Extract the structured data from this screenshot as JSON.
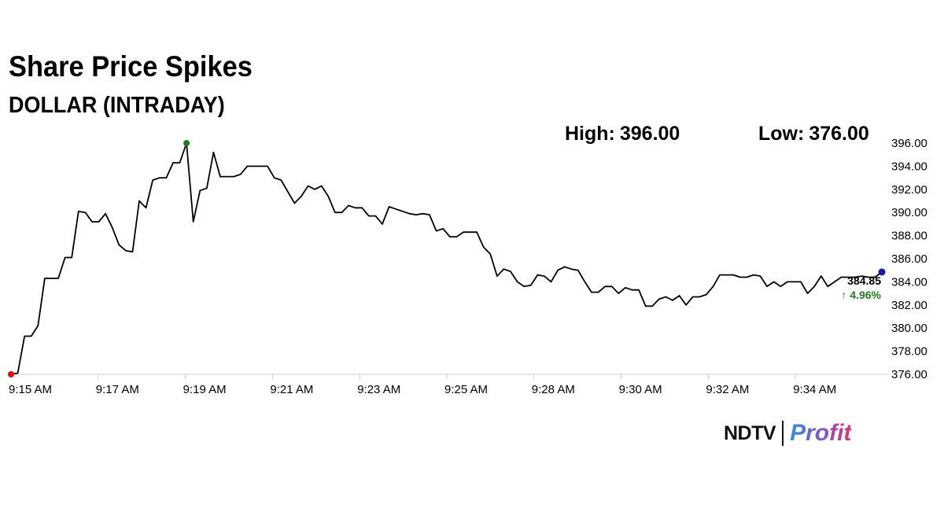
{
  "header": {
    "title": "Share Price Spikes",
    "subtitle": "DOLLAR (INTRADAY)"
  },
  "stats": {
    "high_label": "High:",
    "high_value": "396.00",
    "low_label": "Low:",
    "low_value": "376.00"
  },
  "last_price": {
    "value": "384.85",
    "change": "↑ 4.96%"
  },
  "brand": {
    "ndtv": "NDTV",
    "profit": "Profit"
  },
  "colors": {
    "line": "#000000",
    "high_marker": "#1a7f1a",
    "low_marker": "#e01010",
    "last_marker": "#1a1aa8",
    "change_text": "#1a7f1a",
    "grid": "#cccccc"
  },
  "chart_data": {
    "type": "line",
    "title": "Share Price Spikes",
    "subtitle": "DOLLAR (INTRADAY)",
    "xlabel": "",
    "ylabel": "",
    "ylim": [
      376,
      396
    ],
    "y_ticks": [
      "396.00",
      "394.00",
      "392.00",
      "390.00",
      "388.00",
      "386.00",
      "384.00",
      "382.00",
      "380.00",
      "378.00",
      "376.00"
    ],
    "x_tick_labels": [
      "9:15 AM",
      "9:17 AM",
      "9:19 AM",
      "9:21 AM",
      "9:23 AM",
      "9:25 AM",
      "9:28 AM",
      "9:30 AM",
      "9:32 AM",
      "9:34 AM"
    ],
    "grid": false,
    "series": [
      {
        "values": [
          376.0,
          376.1,
          379.3,
          379.3,
          380.2,
          384.3,
          384.3,
          384.3,
          386.1,
          386.1,
          390.1,
          390.0,
          389.2,
          389.2,
          389.9,
          388.7,
          387.2,
          386.7,
          386.6,
          391.0,
          390.4,
          392.8,
          393.0,
          393.0,
          394.3,
          394.3,
          396.0,
          389.2,
          391.9,
          392.1,
          395.2,
          393.1,
          393.1,
          393.1,
          393.3,
          394.0,
          394.0,
          394.0,
          394.0,
          393.0,
          392.8,
          391.8,
          390.8,
          391.4,
          392.3,
          392.0,
          392.3,
          391.4,
          390.0,
          390.0,
          390.6,
          390.4,
          390.4,
          389.7,
          389.7,
          389.0,
          390.5,
          390.3,
          390.1,
          389.9,
          389.8,
          389.9,
          389.8,
          388.4,
          388.6,
          387.9,
          387.9,
          388.3,
          388.3,
          388.3,
          387.0,
          386.4,
          384.5,
          385.1,
          384.9,
          384.0,
          383.6,
          383.7,
          384.6,
          384.5,
          384.0,
          385.0,
          385.3,
          385.1,
          385.0,
          384.0,
          383.1,
          383.1,
          383.6,
          383.6,
          383.0,
          383.5,
          383.3,
          383.3,
          381.9,
          381.9,
          382.5,
          382.7,
          382.4,
          382.8,
          382.0,
          382.7,
          382.7,
          382.9,
          383.6,
          384.6,
          384.6,
          384.6,
          384.4,
          384.4,
          384.6,
          384.5,
          383.6,
          384.0,
          383.6,
          384.0,
          384.0,
          384.0,
          383.0,
          383.6,
          384.5,
          383.6,
          384.0,
          384.4,
          384.4,
          384.4,
          384.5,
          384.4,
          384.4,
          384.85
        ]
      }
    ],
    "high": 396.0,
    "low": 376.0,
    "last": 384.85,
    "change_percent": 4.96
  }
}
